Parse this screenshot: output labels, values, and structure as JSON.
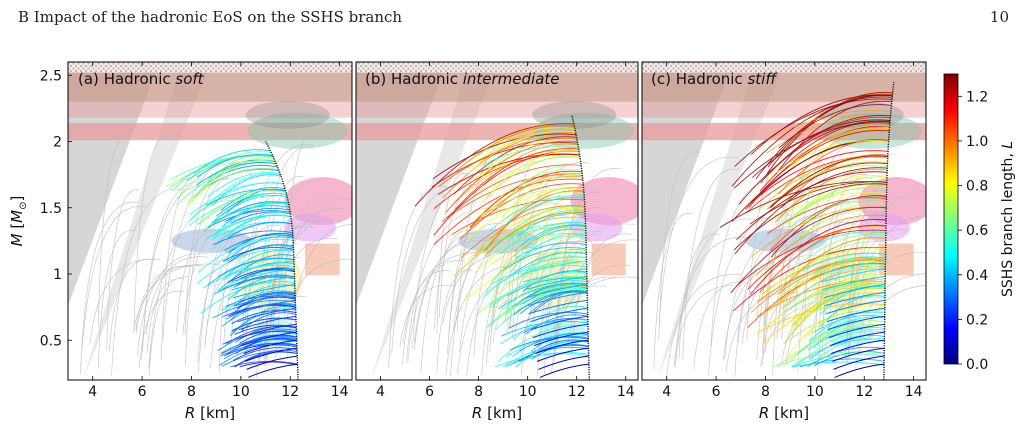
{
  "header": {
    "section": "B   Impact of the hadronic EoS on the SSHS branch",
    "page": "10"
  },
  "colors": {
    "constraint_gray": "#d6d6d6",
    "hatched_band": "#c99a8a",
    "pink_band": "#e89a9a",
    "green_blob": "#7fc8b0",
    "blue_blob": "#9ab7d9",
    "pink_blob": "#f07aa8",
    "magenta_blob": "#e59cf2",
    "orange_box": "#f2a78a",
    "yellow_blob": "#f4f0b0",
    "cyan_blob": "#8ff0ef",
    "background_curves": "#bdbdbd",
    "hadronic_curve": "#111111"
  },
  "chart_data": [
    {
      "type": "line",
      "title": "(a) Hadronic soft",
      "title_parts": [
        "(a)",
        "Hadronic",
        "soft"
      ],
      "xlabel": "R [km]",
      "ylabel": "M [M⊙]",
      "xlim": [
        3,
        14.5
      ],
      "ylim": [
        0.2,
        2.6
      ],
      "xticks": [
        4,
        6,
        8,
        10,
        12,
        14
      ],
      "yticks": [
        0.5,
        1,
        1.5,
        2,
        2.5
      ],
      "max_mass": 2.0,
      "typical_branch_length": 0.45,
      "hadronic_curve": {
        "R_at_M_0_3": 12.3,
        "R_at_M_1": 12.1,
        "R_at_M_max": 11.0,
        "M_max": 2.0
      }
    },
    {
      "type": "line",
      "title": "(b) Hadronic intermediate",
      "title_parts": [
        "(b)",
        "Hadronic",
        "intermediate"
      ],
      "xlabel": "R [km]",
      "ylabel": "",
      "xlim": [
        3,
        14.5
      ],
      "ylim": [
        0.2,
        2.6
      ],
      "xticks": [
        4,
        6,
        8,
        10,
        12,
        14
      ],
      "yticks": [],
      "max_mass": 2.2,
      "typical_branch_length": 0.75,
      "hadronic_curve": {
        "R_at_M_0_3": 12.5,
        "R_at_M_1": 12.35,
        "R_at_M_max": 11.8,
        "M_max": 2.2
      }
    },
    {
      "type": "line",
      "title": "(c) Hadronic stiff",
      "title_parts": [
        "(c)",
        "Hadronic",
        "stiff"
      ],
      "xlabel": "R [km]",
      "ylabel": "",
      "xlim": [
        3,
        14.5
      ],
      "ylim": [
        0.2,
        2.6
      ],
      "xticks": [
        4,
        6,
        8,
        10,
        12,
        14
      ],
      "yticks": [],
      "max_mass": 2.45,
      "typical_branch_length": 1.05,
      "hadronic_curve": {
        "R_at_M_0_3": 12.8,
        "R_at_M_1": 12.9,
        "R_at_M_max": 13.2,
        "M_max": 2.45
      }
    }
  ],
  "colorbar": {
    "label": "SSHS branch length, L",
    "label_parts": [
      "SSHS branch length, ",
      "L"
    ],
    "range": [
      0,
      1.3
    ],
    "ticks": [
      "0.0",
      "0.2",
      "0.4",
      "0.6",
      "0.8",
      "1.0",
      "1.2"
    ],
    "colormap": [
      "#00007f",
      "#0000ff",
      "#007fff",
      "#00ffff",
      "#7fff7f",
      "#ffff00",
      "#ff7f00",
      "#ff0000",
      "#7f0000"
    ]
  }
}
